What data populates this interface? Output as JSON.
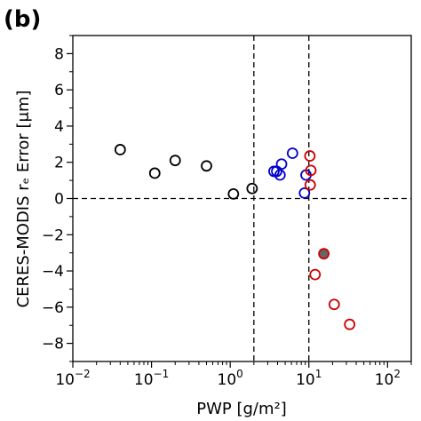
{
  "panel_label": "(b)",
  "chart_data": {
    "type": "scatter",
    "title": "",
    "xlabel": "PWP [g/m²]",
    "ylabel": "CERES-MODIS rₑ Error [μm]",
    "xscale": "log",
    "xlim": [
      0.01,
      200
    ],
    "ylim": [
      -9,
      9
    ],
    "x_ticks": [
      0.01,
      0.1,
      1,
      10,
      100
    ],
    "x_tick_labels": [
      {
        "base": "10",
        "exp": "−2"
      },
      {
        "base": "10",
        "exp": "−1"
      },
      {
        "base": "10",
        "exp": "0"
      },
      {
        "base": "10",
        "exp": "1"
      },
      {
        "base": "10",
        "exp": "2"
      }
    ],
    "y_ticks": [
      -8,
      -6,
      -4,
      -2,
      0,
      2,
      4,
      6,
      8
    ],
    "y_tick_labels": [
      "−8",
      "−6",
      "−4",
      "−2",
      "0",
      "2",
      "4",
      "6",
      "8"
    ],
    "grid": false,
    "reference_lines": {
      "vertical": [
        2,
        10
      ],
      "horizontal": [
        0
      ],
      "style": "dashed"
    },
    "series": [
      {
        "color": "#000000",
        "fill": "none",
        "x": [
          0.04,
          0.11,
          0.2,
          0.5,
          1.1,
          1.9
        ],
        "y": [
          2.7,
          1.4,
          2.1,
          1.8,
          0.25,
          0.55
        ]
      },
      {
        "color": "#0000cc",
        "fill": "none",
        "x": [
          3.6,
          3.9,
          4.3,
          4.5,
          6.2,
          8.8,
          9.2
        ],
        "y": [
          1.5,
          1.5,
          1.3,
          1.9,
          2.5,
          0.3,
          1.3
        ]
      },
      {
        "color": "#cc0000",
        "fill": "none",
        "x": [
          10.3,
          10.6,
          10.4,
          12,
          21,
          33
        ],
        "y": [
          2.35,
          1.55,
          0.75,
          -4.2,
          -5.85,
          -6.95
        ]
      },
      {
        "color": "#cc0000",
        "fill": "#666666",
        "x": [
          15.5
        ],
        "y": [
          -3.05
        ]
      }
    ]
  }
}
